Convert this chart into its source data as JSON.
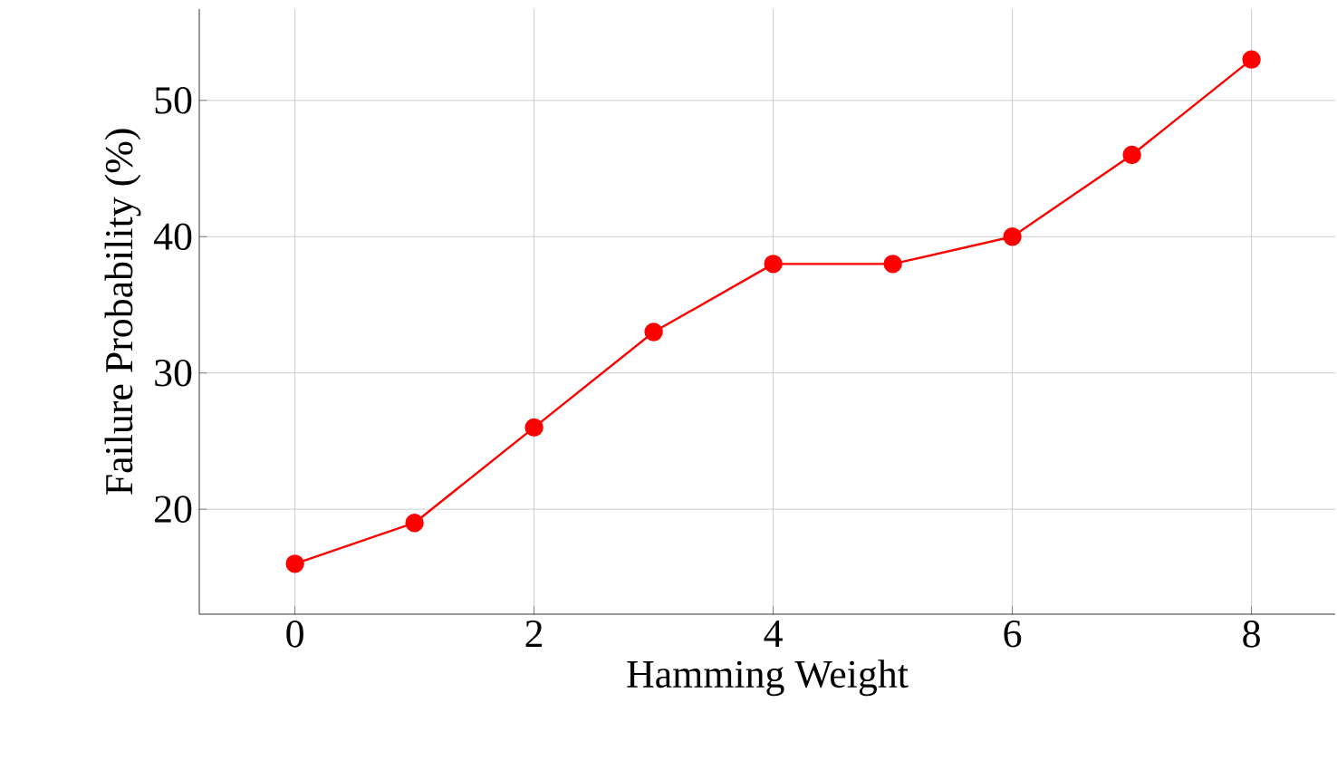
{
  "chart_data": {
    "type": "line",
    "xlabel": "Hamming Weight",
    "ylabel": "Failure Probability (%)",
    "x": [
      0,
      1,
      2,
      3,
      4,
      5,
      6,
      7,
      8
    ],
    "series": [
      {
        "color": "#ff0000",
        "values": [
          16,
          19,
          26,
          33,
          38,
          38,
          40,
          46,
          53
        ]
      }
    ],
    "xlim": [
      -0.8,
      8.7
    ],
    "ylim": [
      12.3,
      56.7
    ],
    "xticks": [
      0,
      2,
      4,
      6,
      8
    ],
    "yticks": [
      20,
      30,
      40,
      50
    ],
    "grid": true,
    "marker": "circle",
    "line_style": "solid"
  }
}
